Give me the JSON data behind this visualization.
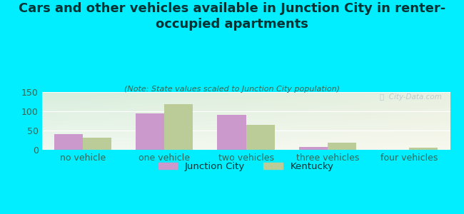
{
  "title": "Cars and other vehicles available in Junction City in renter-\noccupied apartments",
  "subtitle": "(Note: State values scaled to Junction City population)",
  "categories": [
    "no vehicle",
    "one vehicle",
    "two vehicles",
    "three vehicles",
    "four vehicles"
  ],
  "junction_city": [
    41,
    95,
    90,
    8,
    0
  ],
  "kentucky": [
    32,
    118,
    64,
    18,
    5
  ],
  "bar_color_jc": "#cc99cc",
  "bar_color_ky": "#bbcc99",
  "background_outer": "#00eeff",
  "background_inner_topleft": "#d8eedd",
  "background_inner_topright": "#e8f0e0",
  "background_inner_bottomleft": "#f0f8f0",
  "background_inner_bottomright": "#f8f8ee",
  "ylim": [
    0,
    150
  ],
  "yticks": [
    0,
    50,
    100,
    150
  ],
  "bar_width": 0.35,
  "legend_labels": [
    "Junction City",
    "Kentucky"
  ],
  "watermark": "ⓘ  City-Data.com",
  "title_fontsize": 13,
  "subtitle_fontsize": 8,
  "tick_fontsize": 9,
  "tick_color": "#336655",
  "title_color": "#003333",
  "subtitle_color": "#336655"
}
